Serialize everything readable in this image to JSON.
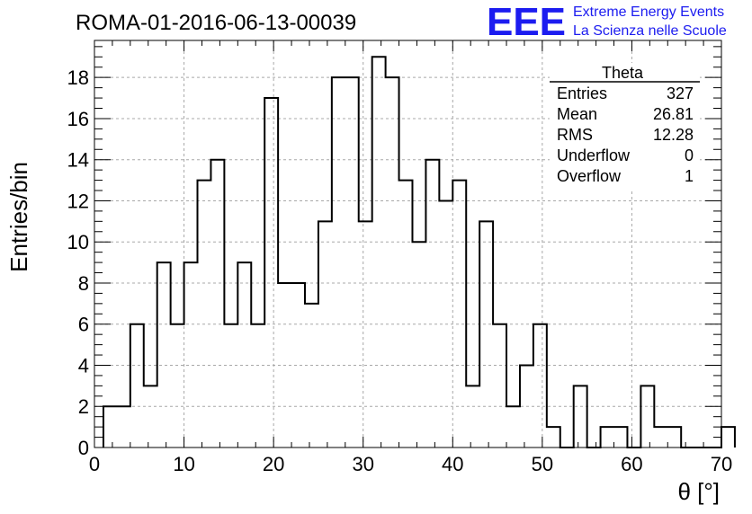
{
  "chart_data": {
    "type": "bar",
    "title": "ROMA-01-2016-06-13-00039",
    "xlabel": "θ [°]",
    "ylabel": "Entries/bin",
    "xlim": [
      0,
      70
    ],
    "ylim": [
      0,
      19.8
    ],
    "x_ticks": [
      0,
      10,
      20,
      30,
      40,
      50,
      60,
      70
    ],
    "y_ticks": [
      0,
      2,
      4,
      6,
      8,
      10,
      12,
      14,
      16,
      18
    ],
    "grid": true,
    "bin_width": 1.5,
    "bin_edges_start": 1,
    "values": [
      2,
      2,
      6,
      3,
      9,
      6,
      9,
      13,
      14,
      6,
      9,
      6,
      17,
      8,
      8,
      7,
      11,
      18,
      18,
      11,
      19,
      18,
      13,
      10,
      14,
      12,
      13,
      3,
      11,
      6,
      2,
      4,
      6,
      1,
      0,
      3,
      0,
      1,
      1,
      0,
      3,
      1,
      1,
      0,
      0,
      0,
      1
    ],
    "stats_box": {
      "title": "Theta",
      "rows": [
        {
          "label": "Entries",
          "value": "327"
        },
        {
          "label": "Mean",
          "value": "26.81"
        },
        {
          "label": "RMS",
          "value": "12.28"
        },
        {
          "label": "Underflow",
          "value": "0"
        },
        {
          "label": "Overflow",
          "value": "1"
        }
      ]
    }
  },
  "logo": {
    "mark": "EEE",
    "line1": "Extreme Energy Events",
    "line2": "La Scienza nelle Scuole",
    "color": "#1c1cf0"
  }
}
